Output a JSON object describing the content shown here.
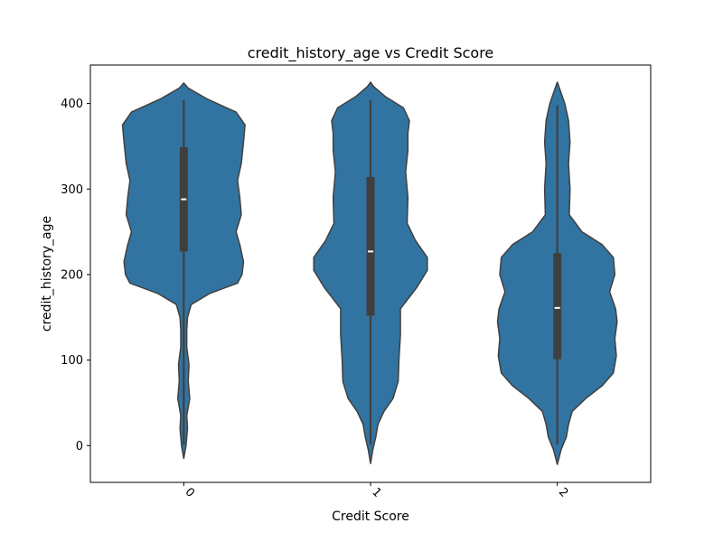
{
  "chart_data": {
    "type": "violin",
    "title": "credit_history_age vs Credit Score",
    "xlabel": "Credit Score",
    "ylabel": "credit_history_age",
    "categories": [
      "0",
      "1",
      "2"
    ],
    "ylim": [
      -43,
      445
    ],
    "yticks": [
      0,
      100,
      200,
      300,
      400
    ],
    "tick_rotation_deg": 45,
    "grid": false,
    "legend": "none",
    "colors": {
      "body": "#3274a1",
      "outline": "#3f3f3f",
      "box": "#3f3f3f",
      "median": "#ffffff"
    },
    "violins": [
      {
        "category": "0",
        "whisker": [
          1,
          404
        ],
        "q1": 227,
        "median": 288,
        "q3": 349,
        "density_min": -15,
        "density_max": 424,
        "profile": [
          [
            -15,
            0.0
          ],
          [
            0,
            0.03
          ],
          [
            20,
            0.05
          ],
          [
            35,
            0.04
          ],
          [
            55,
            0.08
          ],
          [
            75,
            0.06
          ],
          [
            95,
            0.07
          ],
          [
            115,
            0.04
          ],
          [
            135,
            0.04
          ],
          [
            150,
            0.05
          ],
          [
            165,
            0.1
          ],
          [
            178,
            0.35
          ],
          [
            190,
            0.72
          ],
          [
            200,
            0.78
          ],
          [
            215,
            0.8
          ],
          [
            235,
            0.75
          ],
          [
            250,
            0.7
          ],
          [
            270,
            0.77
          ],
          [
            290,
            0.75
          ],
          [
            310,
            0.72
          ],
          [
            330,
            0.77
          ],
          [
            355,
            0.8
          ],
          [
            375,
            0.82
          ],
          [
            390,
            0.7
          ],
          [
            405,
            0.32
          ],
          [
            418,
            0.06
          ],
          [
            424,
            0.0
          ]
        ]
      },
      {
        "category": "1",
        "whisker": [
          1,
          404
        ],
        "q1": 152,
        "median": 227,
        "q3": 314,
        "density_min": -21,
        "density_max": 425,
        "profile": [
          [
            -21,
            0.0
          ],
          [
            -5,
            0.03
          ],
          [
            10,
            0.07
          ],
          [
            25,
            0.1
          ],
          [
            40,
            0.18
          ],
          [
            55,
            0.3
          ],
          [
            75,
            0.37
          ],
          [
            100,
            0.38
          ],
          [
            130,
            0.4
          ],
          [
            160,
            0.4
          ],
          [
            185,
            0.62
          ],
          [
            205,
            0.76
          ],
          [
            220,
            0.76
          ],
          [
            240,
            0.6
          ],
          [
            260,
            0.49
          ],
          [
            290,
            0.5
          ],
          [
            320,
            0.47
          ],
          [
            345,
            0.5
          ],
          [
            365,
            0.5
          ],
          [
            380,
            0.52
          ],
          [
            395,
            0.44
          ],
          [
            408,
            0.2
          ],
          [
            420,
            0.04
          ],
          [
            425,
            0.0
          ]
        ]
      },
      {
        "category": "2",
        "whisker": [
          1,
          398
        ],
        "q1": 101,
        "median": 161,
        "q3": 225,
        "density_min": -22,
        "density_max": 425,
        "profile": [
          [
            -22,
            0.0
          ],
          [
            -5,
            0.05
          ],
          [
            10,
            0.12
          ],
          [
            25,
            0.15
          ],
          [
            40,
            0.2
          ],
          [
            55,
            0.38
          ],
          [
            70,
            0.6
          ],
          [
            85,
            0.75
          ],
          [
            105,
            0.79
          ],
          [
            125,
            0.77
          ],
          [
            145,
            0.8
          ],
          [
            160,
            0.78
          ],
          [
            180,
            0.7
          ],
          [
            200,
            0.77
          ],
          [
            220,
            0.75
          ],
          [
            235,
            0.6
          ],
          [
            250,
            0.33
          ],
          [
            270,
            0.16
          ],
          [
            300,
            0.17
          ],
          [
            330,
            0.15
          ],
          [
            355,
            0.17
          ],
          [
            380,
            0.15
          ],
          [
            400,
            0.1
          ],
          [
            415,
            0.04
          ],
          [
            425,
            0.0
          ]
        ]
      }
    ]
  }
}
